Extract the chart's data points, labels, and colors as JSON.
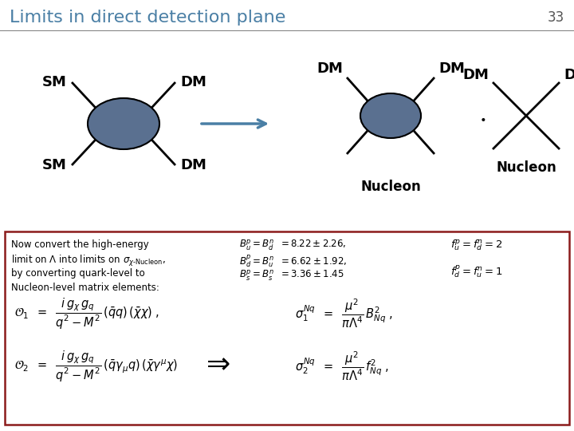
{
  "title": "Limits in direct detection plane",
  "slide_number": "33",
  "title_color": "#4a7fa5",
  "title_fontsize": 16,
  "background_color": "#ffffff",
  "header_line_color": "#888888",
  "box_border_color": "#8b1a1a",
  "feynman_ellipse_color": "#5a7090",
  "arrow_color": "#4a7fa5",
  "nucleon_label": "Nucleon"
}
